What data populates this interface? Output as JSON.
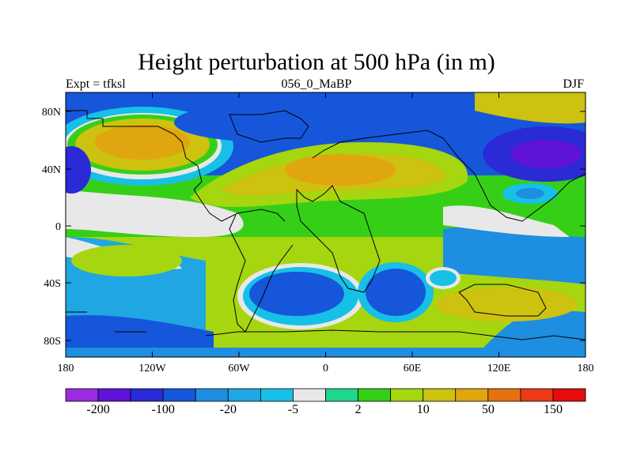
{
  "title": "Height perturbation at 500 hPa (in m)",
  "subtitle_left": "Expt = tfksl",
  "subtitle_center": "056_0_MaBP",
  "subtitle_right": "DJF",
  "lat_ticks": [
    "80N",
    "40N",
    "0",
    "40S",
    "80S"
  ],
  "lon_ticks": [
    "180",
    "120W",
    "60W",
    "0",
    "60E",
    "120E",
    "180"
  ],
  "colorbar_labels": [
    "-200",
    "-100",
    "-20",
    "-5",
    "2",
    "10",
    "50",
    "150"
  ],
  "colors": {
    "purple_light": "#9b2be0",
    "purple": "#5f12d8",
    "indigo": "#2a2ad6",
    "blue": "#1656db",
    "mid_blue": "#1e8ee0",
    "sky": "#1fa6e3",
    "cyan": "#17c0e6",
    "white_band": "#e8e8e8",
    "green_light": "#1fd68a",
    "green": "#36cf18",
    "yellow_green": "#a6d60f",
    "olive": "#ccc20f",
    "orange_light": "#e0a60f",
    "orange": "#e57012",
    "red_orange": "#ea3a16",
    "red": "#e40c0c"
  }
}
